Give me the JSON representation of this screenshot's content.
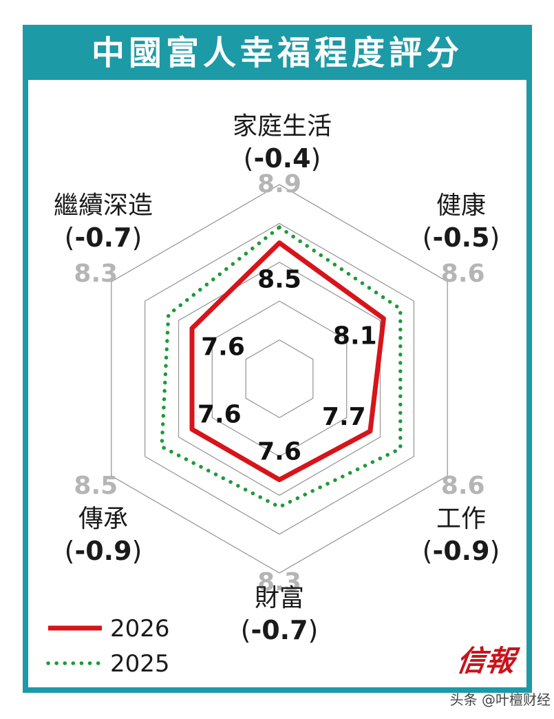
{
  "title": "中國富人幸福程度評分",
  "chart_data": {
    "type": "radar",
    "axes": [
      {
        "name": "家庭生活",
        "delta": "-0.4"
      },
      {
        "name": "健康",
        "delta": "-0.5"
      },
      {
        "name": "工作",
        "delta": "-0.9"
      },
      {
        "name": "財富",
        "delta": "-0.7"
      },
      {
        "name": "傳承",
        "delta": "-0.9"
      },
      {
        "name": "繼續深造",
        "delta": "-0.7"
      }
    ],
    "series": [
      {
        "name": "2026",
        "values": [
          8.5,
          8.1,
          7.7,
          7.6,
          7.6,
          7.6
        ],
        "color": "#d7141a",
        "style": "solid"
      },
      {
        "name": "2025",
        "values": [
          8.9,
          8.6,
          8.6,
          8.3,
          8.5,
          8.3
        ],
        "color": "#1f9a3a",
        "style": "dotted"
      }
    ],
    "range": [
      5,
      10
    ],
    "grid": true,
    "legend_position": "bottom-left"
  },
  "logo": "信報",
  "watermark": "头条 @叶檀财经"
}
